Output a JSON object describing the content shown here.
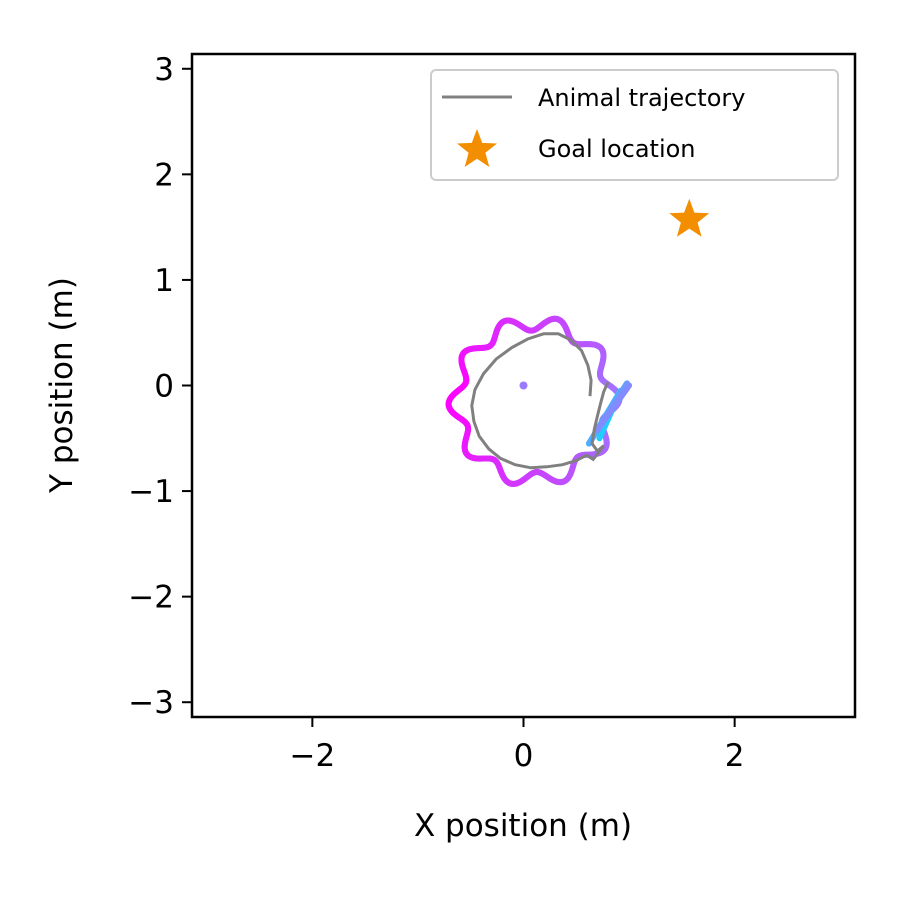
{
  "chart_data": {
    "type": "line",
    "title": "",
    "xlabel": "X position (m)",
    "ylabel": "Y position (m)",
    "xlim": [
      -3.14,
      3.14
    ],
    "ylim": [
      -3.14,
      3.14
    ],
    "xticks": [
      -2,
      0,
      2
    ],
    "xtick_labels": [
      "−2",
      "0",
      "2"
    ],
    "yticks": [
      -3,
      -2,
      -1,
      0,
      1,
      2,
      3
    ],
    "ytick_labels": [
      "−3",
      "−2",
      "−1",
      "0",
      "1",
      "2",
      "3"
    ],
    "grid": false,
    "legend_position": "top-right",
    "colors": {
      "trajectory": "#808080",
      "goal": "#f28e00",
      "path_start": "#22ccff",
      "path_mid": "#9a7bff",
      "path_end": "#ff00ff"
    },
    "series": [
      {
        "name": "Animal trajectory",
        "kind": "line",
        "x": [
          0.8,
          0.76,
          0.73,
          0.7,
          0.67,
          0.65,
          0.7,
          0.76,
          0.66,
          0.6,
          0.5,
          0.37,
          0.22,
          0.07,
          -0.08,
          -0.22,
          -0.33,
          -0.42,
          -0.47,
          -0.49,
          -0.46,
          -0.38,
          -0.26,
          -0.11,
          0.04,
          0.19,
          0.33,
          0.45,
          0.55,
          0.61,
          0.64,
          0.63
        ],
        "y": [
          0.03,
          -0.06,
          -0.17,
          -0.29,
          -0.42,
          -0.55,
          -0.62,
          -0.57,
          -0.7,
          -0.66,
          -0.71,
          -0.75,
          -0.77,
          -0.78,
          -0.75,
          -0.69,
          -0.6,
          -0.48,
          -0.34,
          -0.19,
          -0.04,
          0.11,
          0.25,
          0.36,
          0.44,
          0.49,
          0.49,
          0.43,
          0.33,
          0.19,
          0.05,
          -0.1
        ]
      },
      {
        "name": "Goal location",
        "kind": "marker",
        "x": [
          1.57
        ],
        "y": [
          1.57
        ]
      }
    ]
  }
}
